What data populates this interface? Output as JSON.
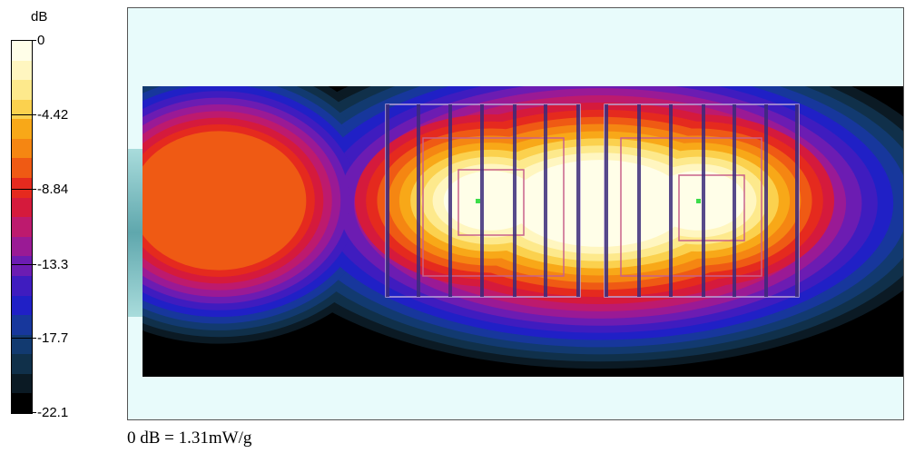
{
  "chart_data": {
    "type": "heatmap",
    "title": "",
    "colorbar": {
      "unit_label": "dB",
      "tick_labels": [
        "0",
        "-4.42",
        "-8.84",
        "-13.3",
        "-17.7",
        "-22.1"
      ],
      "ticks": [
        0,
        -4.42,
        -8.84,
        -13.3,
        -17.7,
        -22.1
      ],
      "range": [
        -22.1,
        0
      ],
      "band_colors": [
        "#fffee8",
        "#fff6c0",
        "#fde98c",
        "#fbd14e",
        "#f8a818",
        "#f58612",
        "#ef5a14",
        "#e52a1e",
        "#d51a3c",
        "#bd1a6e",
        "#9a1a95",
        "#6c1cb2",
        "#3f1cbf",
        "#2020c6",
        "#17379c",
        "#123a70",
        "#10304a",
        "#0b1a24",
        "#000000"
      ]
    },
    "reference_note": "0 dB = 1.31mW/g",
    "background_color": "#e8fbfb"
  }
}
